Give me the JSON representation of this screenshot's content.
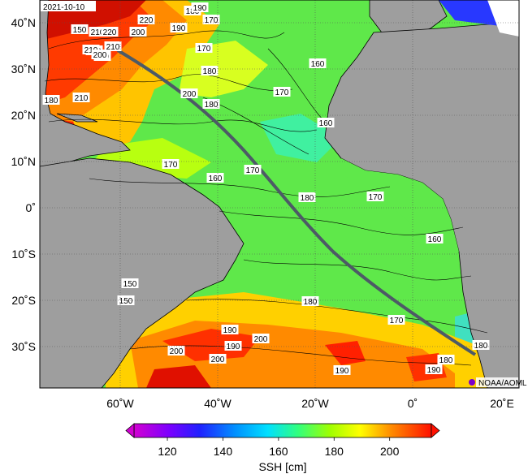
{
  "date": "2021-10-10",
  "credit": "NOAA/AOML",
  "lat_ticks": [
    "40˚N",
    "30˚N",
    "20˚N",
    "10˚N",
    "0˚",
    "10˚S",
    "20˚S",
    "30˚S"
  ],
  "lon_ticks": [
    "60˚W",
    "40˚W",
    "20˚W",
    "0˚",
    "20˚E"
  ],
  "colorbar": {
    "label": "SSH [cm]",
    "ticks": [
      "120",
      "140",
      "160",
      "180",
      "200"
    ],
    "range": [
      108,
      215
    ]
  },
  "contour_labels": [
    "220",
    "180",
    "190",
    "170",
    "150",
    "210",
    "220",
    "200",
    "190",
    "220",
    "210",
    "200",
    "200",
    "210",
    "170",
    "160",
    "180",
    "200",
    "180",
    "170",
    "210",
    "180",
    "160",
    "170",
    "160",
    "170",
    "180",
    "170",
    "160",
    "150",
    "180",
    "170",
    "190",
    "200",
    "190",
    "200",
    "200",
    "190",
    "190",
    "180",
    "180",
    "150"
  ],
  "colors": {
    "land": "#9e9e9e",
    "track": "#4d5a66",
    "background": "#ffffff"
  }
}
